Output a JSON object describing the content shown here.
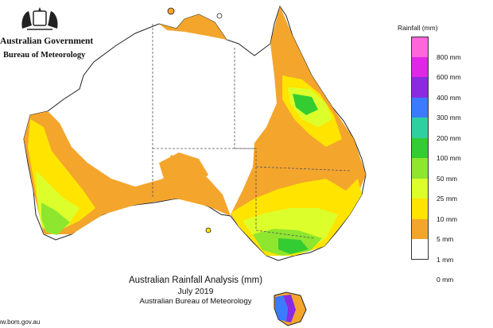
{
  "header": {
    "agency_line1": "Australian Government",
    "agency_line2": "Bureau of Meteorology"
  },
  "map": {
    "title": "Australian Rainfall Analysis (mm)",
    "period": "July 2019",
    "source": "Australian Bureau of Meteorology",
    "url": "www.bom.gov.au"
  },
  "legend": {
    "title": "Rainfall (mm)",
    "items": [
      {
        "label": "800 mm",
        "color": "#ff66d9"
      },
      {
        "label": "600 mm",
        "color": "#e026e6"
      },
      {
        "label": "400 mm",
        "color": "#8a2be2"
      },
      {
        "label": "300 mm",
        "color": "#3a7bff"
      },
      {
        "label": "200 mm",
        "color": "#2fd0a0"
      },
      {
        "label": "100 mm",
        "color": "#33cc33"
      },
      {
        "label": "50 mm",
        "color": "#8ee62e"
      },
      {
        "label": "25 mm",
        "color": "#dcff2b"
      },
      {
        "label": "10 mm",
        "color": "#ffe400"
      },
      {
        "label": "5 mm",
        "color": "#f4a52c"
      },
      {
        "label": "1 mm",
        "color": "#ffffff"
      },
      {
        "label": "0 mm"
      }
    ]
  }
}
